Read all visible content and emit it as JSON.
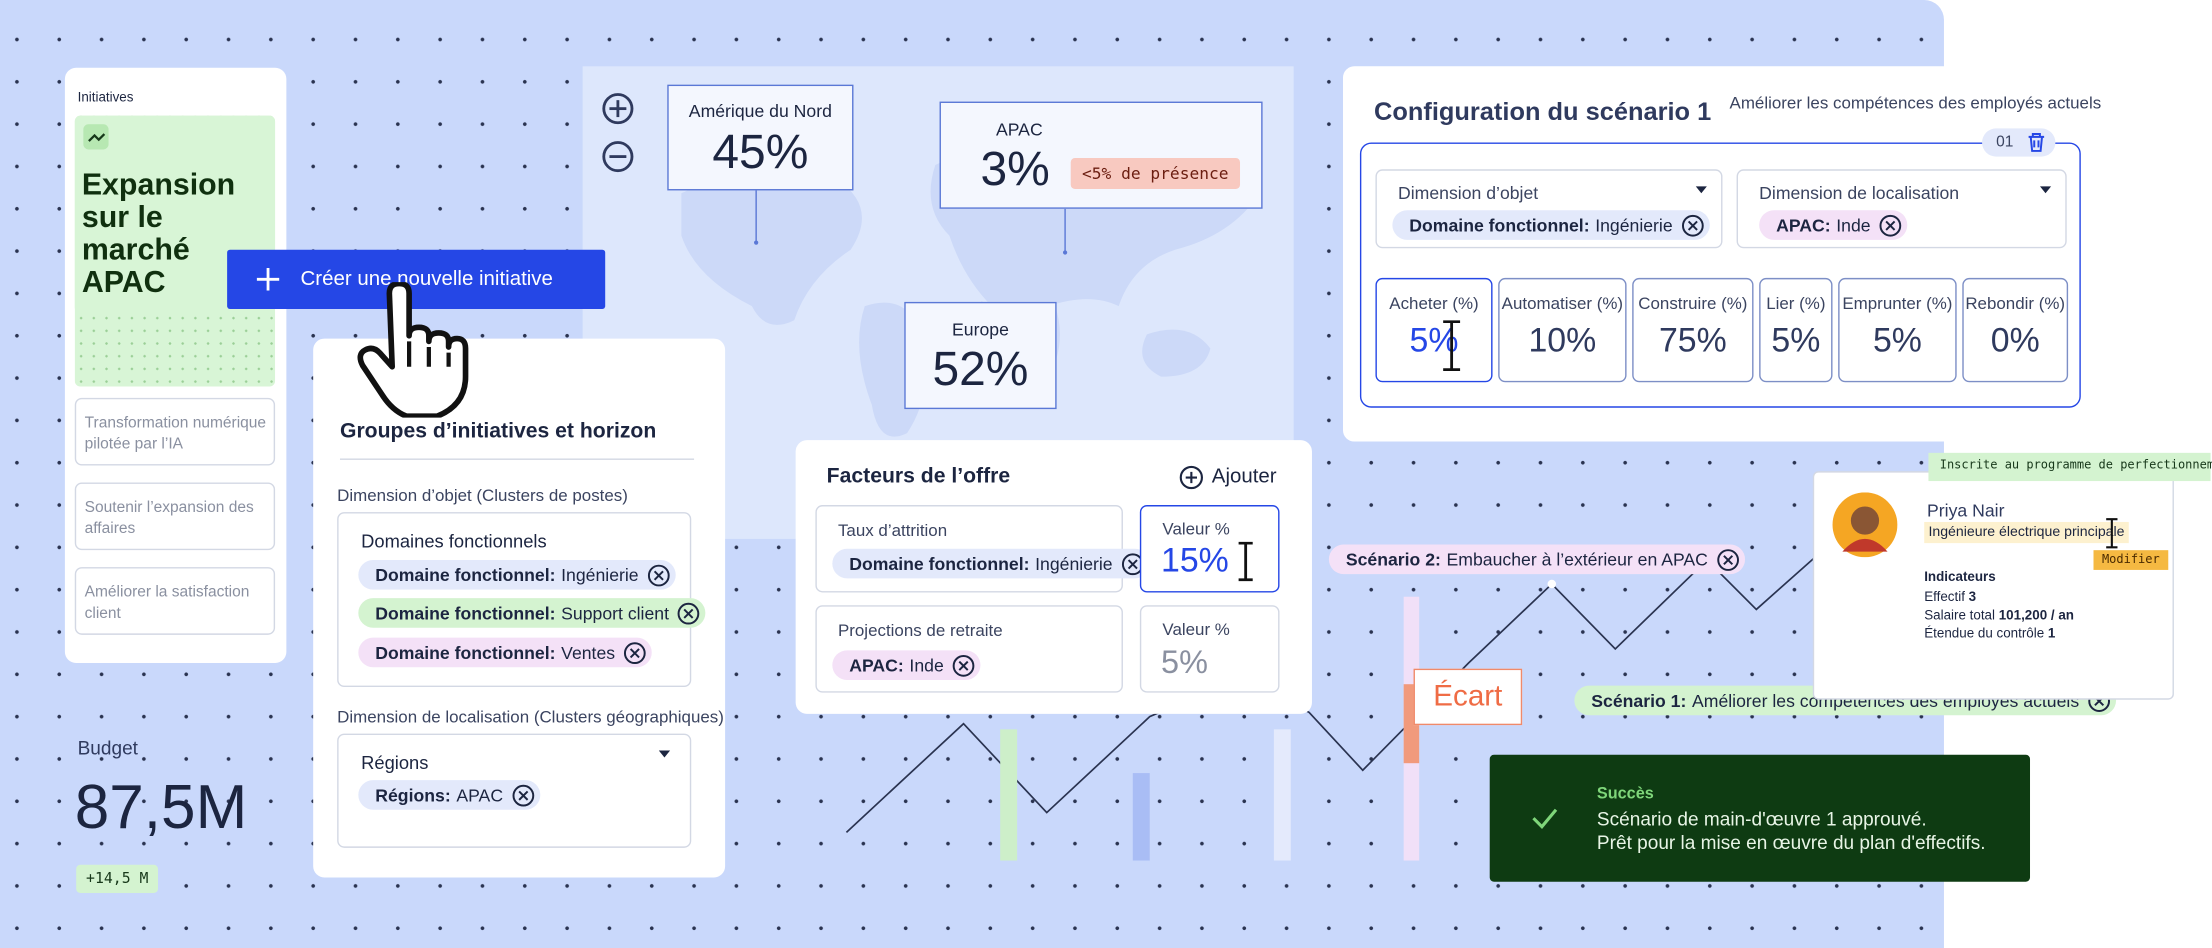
{
  "sidebar": {
    "title": "Initiatives",
    "active": "Expansion sur le marché APAC",
    "items": [
      "Transformation numérique pilotée par l’IA",
      "Soutenir l’expansion des affaires",
      "Améliorer la satisfaction client"
    ]
  },
  "create_button": "Créer une nouvelle initiative",
  "budget": {
    "label": "Budget",
    "value": "87,5M",
    "delta": "+14,5 M"
  },
  "map": {
    "regions": [
      {
        "name": "Amérique du Nord",
        "value": "45%"
      },
      {
        "name": "APAC",
        "value": "3%",
        "note": "<5% de présence"
      },
      {
        "name": "Europe",
        "value": "52%"
      }
    ]
  },
  "groups": {
    "title": "Groupes d’initiatives et horizon",
    "object_label": "Dimension d’objet (Clusters de postes)",
    "object_box": "Domaines fonctionnels",
    "object_chips": [
      {
        "key": "Domaine fonctionnel:",
        "value": "Ingénierie"
      },
      {
        "key": "Domaine fonctionnel:",
        "value": "Support client"
      },
      {
        "key": "Domaine fonctionnel:",
        "value": "Ventes"
      }
    ],
    "location_label": "Dimension de localisation (Clusters géographiques)",
    "location_box": "Régions",
    "location_chips": [
      {
        "key": "Régions:",
        "value": "APAC"
      }
    ]
  },
  "offer": {
    "title": "Facteurs de l’offre",
    "add": "Ajouter",
    "rows": [
      {
        "label": "Taux d’attrition",
        "chip": {
          "key": "Domaine fonctionnel:",
          "value": "Ingénierie"
        },
        "value_label": "Valeur %",
        "value": "15%"
      },
      {
        "label": "Projections de retraite",
        "chip": {
          "key": "APAC:",
          "value": "Inde"
        },
        "value_label": "Valeur %",
        "value": "5%"
      }
    ]
  },
  "config": {
    "title": "Configuration du scénario 1",
    "subtitle": "Améliorer les compétences des employés actuels",
    "index": "01",
    "dimensions": [
      {
        "label": "Dimension d’objet",
        "chip": {
          "key": "Domaine fonctionnel:",
          "value": "Ingénierie"
        }
      },
      {
        "label": "Dimension de localisation",
        "chip": {
          "key": "APAC:",
          "value": "Inde"
        }
      }
    ],
    "levers": [
      {
        "label": "Acheter (%)",
        "value": "5%"
      },
      {
        "label": "Automatiser (%)",
        "value": "10%"
      },
      {
        "label": "Construire (%)",
        "value": "75%"
      },
      {
        "label": "Lier (%)",
        "value": "5%"
      },
      {
        "label": "Emprunter (%)",
        "value": "5%"
      },
      {
        "label": "Rebondir (%)",
        "value": "0%"
      }
    ]
  },
  "scenarios": [
    {
      "key": "Scénario 2:",
      "value": "Embaucher à l’extérieur en APAC"
    },
    {
      "key": "Scénario 1:",
      "value": "Améliorer les compétences des employés actuels"
    }
  ],
  "gap": "Écart",
  "profile": {
    "badge": "Inscrite au programme de perfectionnement",
    "name": "Priya Nair",
    "role": "Ingénieure électrique principale",
    "edit": "Modifier",
    "metrics_title": "Indicateurs",
    "metrics": [
      {
        "label": "Effectif",
        "value": "3"
      },
      {
        "label": "Salaire total",
        "value": "101,200 / an"
      },
      {
        "label": "Étendue du contrôle",
        "value": "1"
      }
    ]
  },
  "toast": {
    "title": "Succès",
    "lines": [
      "Scénario de main-d'œuvre 1 approuvé.",
      "Prêt pour la mise en œuvre du plan d'effectifs."
    ]
  }
}
